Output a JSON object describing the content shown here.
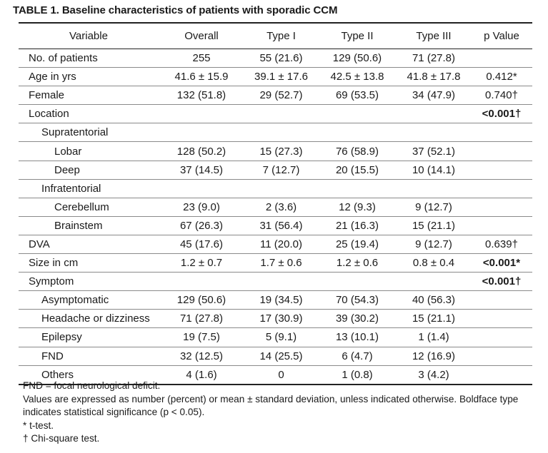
{
  "title": "TABLE 1. Baseline characteristics of patients with sporadic CCM",
  "columns": [
    "Variable",
    "Overall",
    "Type I",
    "Type II",
    "Type III",
    "p Value"
  ],
  "rows": [
    {
      "label": "No. of patients",
      "level": 0,
      "cells": [
        "255",
        "55 (21.6)",
        "129 (50.6)",
        "71 (27.8)"
      ],
      "p": "",
      "p_bold": false
    },
    {
      "label": "Age in yrs",
      "level": 0,
      "cells": [
        "41.6 ± 15.9",
        "39.1 ± 17.6",
        "42.5 ± 13.8",
        "41.8 ± 17.8"
      ],
      "p": "0.412*",
      "p_bold": false
    },
    {
      "label": "Female",
      "level": 0,
      "cells": [
        "132 (51.8)",
        "29 (52.7)",
        "69 (53.5)",
        "34 (47.9)"
      ],
      "p": "0.740†",
      "p_bold": false
    },
    {
      "label": "Location",
      "level": 0,
      "cells": [
        "",
        "",
        "",
        ""
      ],
      "p": "<0.001†",
      "p_bold": true
    },
    {
      "label": "Supratentorial",
      "level": 1,
      "cells": [
        "",
        "",
        "",
        ""
      ],
      "p": "",
      "p_bold": false
    },
    {
      "label": "Lobar",
      "level": 2,
      "cells": [
        "128 (50.2)",
        "15 (27.3)",
        "76 (58.9)",
        "37 (52.1)"
      ],
      "p": "",
      "p_bold": false
    },
    {
      "label": "Deep",
      "level": 2,
      "cells": [
        "37 (14.5)",
        "7 (12.7)",
        "20 (15.5)",
        "10 (14.1)"
      ],
      "p": "",
      "p_bold": false
    },
    {
      "label": "Infratentorial",
      "level": 1,
      "cells": [
        "",
        "",
        "",
        ""
      ],
      "p": "",
      "p_bold": false
    },
    {
      "label": "Cerebellum",
      "level": 2,
      "cells": [
        "23 (9.0)",
        "2 (3.6)",
        "12 (9.3)",
        "9 (12.7)"
      ],
      "p": "",
      "p_bold": false
    },
    {
      "label": "Brainstem",
      "level": 2,
      "cells": [
        "67 (26.3)",
        "31 (56.4)",
        "21 (16.3)",
        "15 (21.1)"
      ],
      "p": "",
      "p_bold": false
    },
    {
      "label": "DVA",
      "level": 0,
      "cells": [
        "45 (17.6)",
        "11 (20.0)",
        "25 (19.4)",
        "9 (12.7)"
      ],
      "p": "0.639†",
      "p_bold": false
    },
    {
      "label": "Size in cm",
      "level": 0,
      "cells": [
        "1.2 ± 0.7",
        "1.7 ± 0.6",
        "1.2 ± 0.6",
        "0.8 ± 0.4"
      ],
      "p": "<0.001*",
      "p_bold": true
    },
    {
      "label": "Symptom",
      "level": 0,
      "cells": [
        "",
        "",
        "",
        ""
      ],
      "p": "<0.001†",
      "p_bold": true
    },
    {
      "label": "Asymptomatic",
      "level": 1,
      "cells": [
        "129 (50.6)",
        "19 (34.5)",
        "70 (54.3)",
        "40 (56.3)"
      ],
      "p": "",
      "p_bold": false
    },
    {
      "label": "Headache or dizziness",
      "level": 1,
      "cells": [
        "71 (27.8)",
        "17 (30.9)",
        "39 (30.2)",
        "15 (21.1)"
      ],
      "p": "",
      "p_bold": false
    },
    {
      "label": "Epilepsy",
      "level": 1,
      "cells": [
        "19 (7.5)",
        "5 (9.1)",
        "13 (10.1)",
        "1 (1.4)"
      ],
      "p": "",
      "p_bold": false
    },
    {
      "label": "FND",
      "level": 1,
      "cells": [
        "32 (12.5)",
        "14 (25.5)",
        "6 (4.7)",
        "12 (16.9)"
      ],
      "p": "",
      "p_bold": false
    },
    {
      "label": "Others",
      "level": 1,
      "cells": [
        "4 (1.6)",
        "0",
        "1 (0.8)",
        "3 (4.2)"
      ],
      "p": "",
      "p_bold": false
    }
  ],
  "footnotes": [
    "FND = focal neurological deficit.",
    "Values are expressed as number (percent) or mean ± standard deviation, unless indicated otherwise. Boldface type indicates statistical significance (p < 0.05).",
    "* t-test.",
    "† Chi-square test."
  ]
}
